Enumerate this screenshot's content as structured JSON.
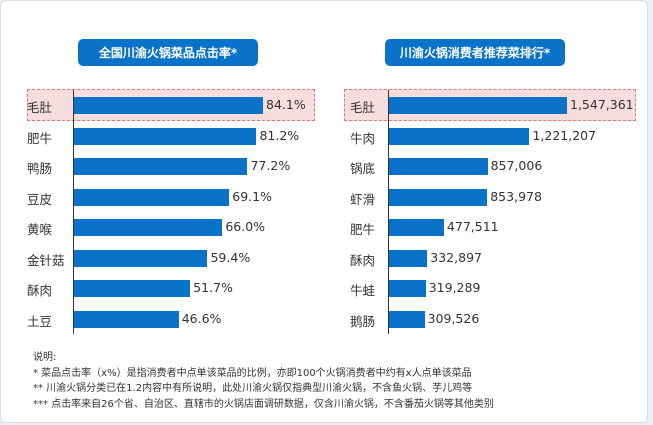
{
  "chart_data": [
    {
      "type": "bar",
      "orientation": "horizontal",
      "title": "全国川渝火锅菜品点击率*",
      "categories": [
        "毛肚",
        "肥牛",
        "鸭肠",
        "豆皮",
        "黄喉",
        "金针菇",
        "酥肉",
        "土豆"
      ],
      "values": [
        84.1,
        81.2,
        77.2,
        69.1,
        66.0,
        59.4,
        51.7,
        46.6
      ],
      "labels": [
        "84.1%",
        "81.2%",
        "77.2%",
        "69.1%",
        "66.0%",
        "59.4%",
        "51.7%",
        "46.6%"
      ],
      "highlight": "毛肚",
      "bar_color": "#0b72c9",
      "highlight_color": "#f7dede"
    },
    {
      "type": "bar",
      "orientation": "horizontal",
      "title": "川渝火锅消费者推荐菜排行*",
      "categories": [
        "毛肚",
        "牛肉",
        "锅底",
        "虾滑",
        "肥牛",
        "酥肉",
        "牛蛙",
        "鹅肠"
      ],
      "values": [
        1547361,
        1221207,
        857006,
        853978,
        477511,
        332897,
        319289,
        309526
      ],
      "labels": [
        "1,547,361",
        "1,221,207",
        "857,006",
        "853,978",
        "477,511",
        "332,897",
        "319,289",
        "309,526"
      ],
      "highlight": "毛肚",
      "bar_color": "#0b72c9",
      "highlight_color": "#f7dede"
    }
  ],
  "notes": {
    "heading": "说明:",
    "lines": [
      "* 菜品点击率（x%）是指消费者中点单该菜品的比例，亦即100个火锅消费者中约有x人点单该菜品",
      "** 川渝火锅分类已在1.2内容中有所说明，此处川渝火锅仅指典型川渝火锅，不含鱼火锅、芋儿鸡等",
      "*** 点击率来自26个省、自治区、直辖市的火锅店面调研数据，仅含川渝火锅，不含番茄火锅等其他类别"
    ]
  }
}
